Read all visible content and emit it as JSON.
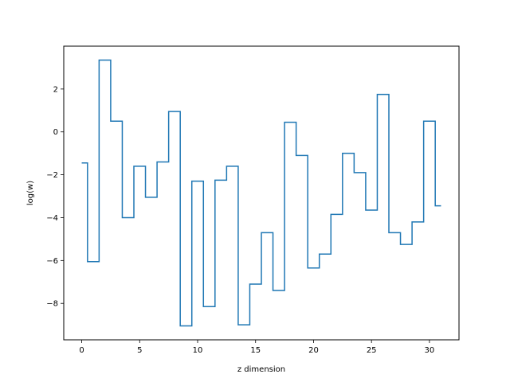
{
  "chart_data": {
    "type": "line",
    "drawstyle": "steps-mid",
    "title": "",
    "xlabel": "z dimension",
    "ylabel": "log(w)",
    "xlim": [
      -1.55,
      32.55
    ],
    "ylim": [
      -9.7,
      4.0
    ],
    "xticks": [
      0,
      5,
      10,
      15,
      20,
      25,
      30
    ],
    "yticks": [
      -8,
      -6,
      -4,
      -2,
      0,
      2
    ],
    "grid": false,
    "legend": "none",
    "series": [
      {
        "color": "#1f77b4",
        "x": [
          0,
          1,
          2,
          3,
          4,
          5,
          6,
          7,
          8,
          9,
          10,
          11,
          12,
          13,
          14,
          15,
          16,
          17,
          18,
          19,
          20,
          21,
          22,
          23,
          24,
          25,
          26,
          27,
          28,
          29,
          30,
          31
        ],
        "y": [
          -1.45,
          -6.05,
          3.35,
          0.5,
          -4.0,
          -1.6,
          -3.05,
          -1.4,
          0.95,
          -9.05,
          -2.3,
          -8.15,
          -2.25,
          -1.6,
          -9.0,
          -7.1,
          -4.7,
          -7.4,
          0.45,
          -1.1,
          -6.35,
          -5.7,
          -3.85,
          -1.0,
          -1.9,
          -3.65,
          1.75,
          -4.7,
          -5.25,
          -4.2,
          0.5,
          -3.45
        ]
      }
    ]
  }
}
